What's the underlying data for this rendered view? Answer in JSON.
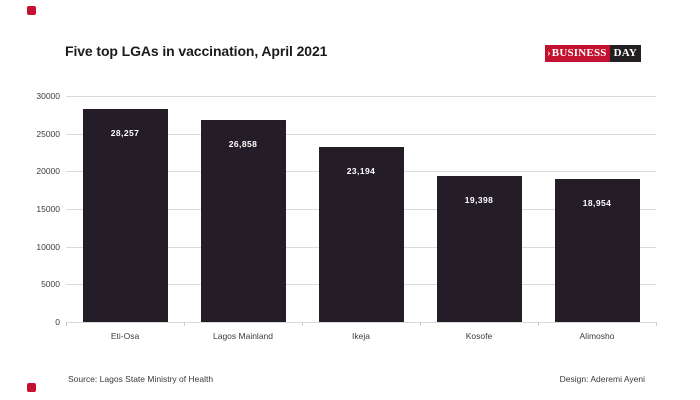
{
  "header": {
    "title": "Five top LGAs in vaccination, April 2021"
  },
  "logo": {
    "chevron": "›",
    "business": "BUSINESS",
    "day": "DAY",
    "red": "#c4112f",
    "black": "#221e22"
  },
  "footer": {
    "source": "Source: Lagos State Ministry of Health",
    "design": "Design: Aderemi Ayeni"
  },
  "accent": {
    "corner_color": "#c4112f"
  },
  "chart_data": {
    "type": "bar",
    "title": "Five top LGAs in vaccination, April 2021",
    "categories": [
      "Eti-Osa",
      "Lagos Mainland",
      "Ikeja",
      "Kosofe",
      "Alimosho"
    ],
    "values": [
      28257,
      26858,
      23194,
      19398,
      18954
    ],
    "value_labels": [
      "28,257",
      "26,858",
      "23,194",
      "19,398",
      "18,954"
    ],
    "xlabel": "",
    "ylabel": "",
    "ylim": [
      0,
      30000
    ],
    "ytick_interval": 5000,
    "yticks": [
      0,
      5000,
      10000,
      15000,
      20000,
      25000,
      30000
    ],
    "ytick_labels": [
      "0",
      "5000",
      "10000",
      "15000",
      "20000",
      "25000",
      "30000"
    ],
    "grid": "horizontal",
    "legend": "none",
    "bar_color": "#241d27",
    "value_label_color": "#ffffff",
    "gridline_color": "#dadada"
  }
}
